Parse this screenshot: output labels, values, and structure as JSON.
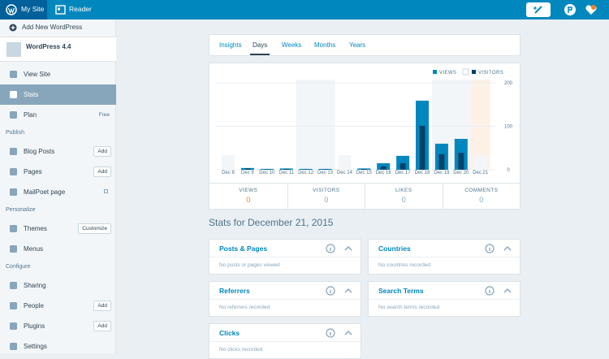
{
  "masterbar": {
    "my_site": "My Site",
    "reader": "Reader"
  },
  "sidebar": {
    "add_new": "Add New WordPress",
    "site_name": "WordPress 4.4",
    "groups": [
      {
        "items": [
          {
            "label": "View Site"
          },
          {
            "label": "Stats",
            "selected": true
          },
          {
            "label": "Plan",
            "note": "Free"
          }
        ]
      },
      {
        "heading": "Publish",
        "items": [
          {
            "label": "Blog Posts",
            "button": "Add"
          },
          {
            "label": "Pages",
            "button": "Add"
          },
          {
            "label": "MailPoet page",
            "external": true
          }
        ]
      },
      {
        "heading": "Personalize",
        "items": [
          {
            "label": "Themes",
            "button": "Customize"
          },
          {
            "label": "Menus"
          }
        ]
      },
      {
        "heading": "Configure",
        "items": [
          {
            "label": "Sharing"
          },
          {
            "label": "People",
            "button": "Add"
          },
          {
            "label": "Plugins",
            "button": "Add"
          },
          {
            "label": "Settings"
          }
        ]
      }
    ]
  },
  "tabs": [
    {
      "label": "Insights"
    },
    {
      "label": "Days",
      "selected": true
    },
    {
      "label": "Weeks"
    },
    {
      "label": "Months"
    },
    {
      "label": "Years"
    }
  ],
  "chart": {
    "type": "bar",
    "categories": [
      "Dec 8",
      "Dec 9",
      "Dec 10",
      "Dec 11",
      "Dec 12",
      "Dec 13",
      "Dec 14",
      "Dec 15",
      "Dec 16",
      "Dec 17",
      "Dec 18",
      "Dec 19",
      "Dec 20",
      "Dec 21"
    ],
    "series": [
      {
        "name": "VIEWS",
        "color": "#0087be",
        "values": [
          0,
          4,
          2,
          3,
          2,
          2,
          0,
          3,
          15,
          32,
          159,
          60,
          71,
          0
        ]
      },
      {
        "name": "VISITORS",
        "color": "#00436b",
        "values": [
          0,
          3,
          1,
          2,
          1,
          1,
          0,
          2,
          8,
          15,
          101,
          36,
          39,
          0
        ]
      }
    ],
    "ylim": [
      0,
      200
    ],
    "yticks": [
      0,
      100,
      200
    ],
    "grid": true
  },
  "summary": [
    {
      "label": "VIEWS",
      "value": 0,
      "selected": true
    },
    {
      "label": "VISITORS",
      "value": 0
    },
    {
      "label": "LIKES",
      "value": 0
    },
    {
      "label": "COMMENTS",
      "value": 0
    }
  ],
  "stats_heading": "Stats for December 21, 2015",
  "modules": [
    {
      "title": "Posts & Pages",
      "empty": "No posts or pages viewed"
    },
    {
      "title": "Countries",
      "empty": "No countries recorded"
    },
    {
      "title": "Referrers",
      "empty": "No referrers recorded"
    },
    {
      "title": "Search Terms",
      "empty": "No search terms recorded"
    },
    {
      "title": "Clicks",
      "empty": "No clicks recorded"
    }
  ]
}
